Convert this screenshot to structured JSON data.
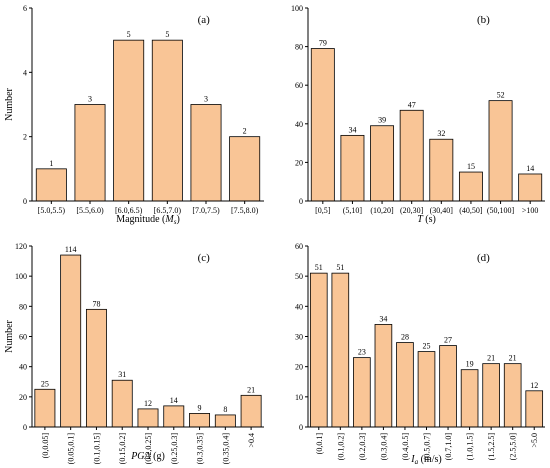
{
  "chart_data": [
    {
      "type": "bar",
      "panel_label": "(a)",
      "categories": [
        "[5.0,5.5)",
        "[5.5,6.0)",
        "[6.0,6.5)",
        "[6.5,7.0)",
        "[7.0,7.5)",
        "[7.5,8.0)"
      ],
      "values": [
        1,
        3,
        5,
        5,
        3,
        2
      ],
      "xlabel": "Magnitude (M",
      "xlabel_sub": "s",
      "xlabel_end": ")",
      "ylabel": "Number",
      "ylim": [
        0,
        6
      ],
      "yticks": [
        0,
        2,
        4,
        6
      ],
      "rotate_ticks": false,
      "bar_color": "#F9C596"
    },
    {
      "type": "bar",
      "panel_label": "(b)",
      "categories": [
        "[0,5]",
        "(5,10]",
        "(10,20]",
        "(20,30]",
        "(30,40]",
        "(40,50]",
        "(50,100]",
        ">100"
      ],
      "values": [
        79,
        34,
        39,
        47,
        32,
        15,
        52,
        14
      ],
      "xlabel": "T",
      "xlabel_unit": " (s)",
      "ylabel": "",
      "ylim": [
        0,
        100
      ],
      "yticks": [
        0,
        20,
        40,
        60,
        80,
        100
      ],
      "rotate_ticks": false,
      "bar_color": "#F9C596"
    },
    {
      "type": "bar",
      "panel_label": "(c)",
      "categories": [
        "(0,0.05]",
        "(0.05,0.1]",
        "(0.1,0.15]",
        "(0.15,0.2]",
        "(0.2,0.25]",
        "(0.25,0.3]",
        "(0.3,0.35]",
        "(0.35,0.4]",
        ">0.4"
      ],
      "values": [
        25,
        114,
        78,
        31,
        12,
        14,
        9,
        8,
        21
      ],
      "xlabel": "PGA",
      "xlabel_unit": " (g)",
      "ylabel": "Number",
      "ylim": [
        0,
        120
      ],
      "yticks": [
        0,
        20,
        40,
        60,
        80,
        100,
        120
      ],
      "rotate_ticks": true,
      "bar_color": "#F9C596"
    },
    {
      "type": "bar",
      "panel_label": "(d)",
      "categories": [
        "(0,0.1]",
        "(0.1,0.2]",
        "(0.2,0.3]",
        "(0.3,0.4]",
        "(0.4,0.5]",
        "(0.5,0.7]",
        "(0.7,1.0]",
        "(1.0,1.5]",
        "(1.5,2.5]",
        "(2.5,5.0]",
        ">5.0"
      ],
      "values": [
        51,
        51,
        23,
        34,
        28,
        25,
        27,
        19,
        21,
        21,
        12
      ],
      "xlabel": "I",
      "xlabel_sub": "a",
      "xlabel_unit": " (m/s)",
      "ylabel": "",
      "ylim": [
        0,
        60
      ],
      "yticks": [
        0,
        10,
        20,
        30,
        40,
        50,
        60
      ],
      "rotate_ticks": true,
      "bar_color": "#F9C596"
    }
  ]
}
